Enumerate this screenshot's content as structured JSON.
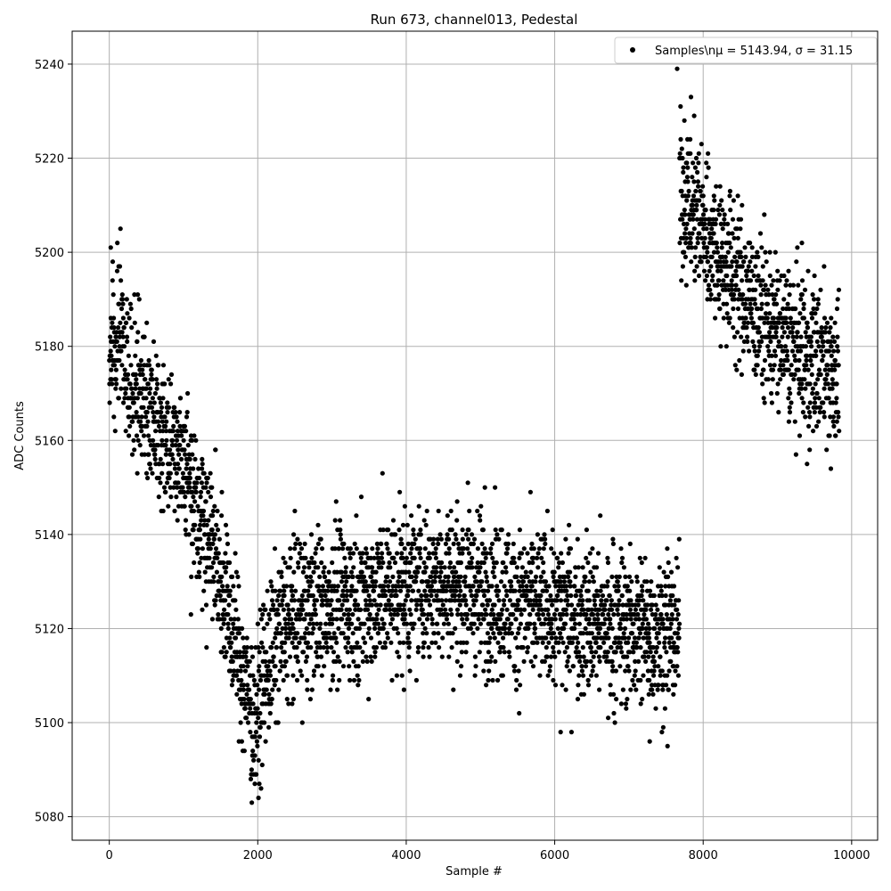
{
  "chart_data": {
    "type": "scatter",
    "title": "Run 673, channel013, Pedestal",
    "xlabel": "Sample #",
    "ylabel": "ADC Counts",
    "xlim": [
      -500,
      10350
    ],
    "ylim": [
      5075,
      5247
    ],
    "xticks": [
      0,
      2000,
      4000,
      6000,
      8000,
      10000
    ],
    "yticks": [
      5080,
      5100,
      5120,
      5140,
      5160,
      5180,
      5200,
      5220,
      5240
    ],
    "grid": true,
    "legend_position": "top-right",
    "series": [
      {
        "name": "Samples\\n$\\mu$ = 5143.94, $\\sigma$ = 31.15",
        "legend_label": "Samples\\nμ = 5143.94, σ = 31.15",
        "color": "#000000",
        "marker": "circle",
        "n_points": 3800,
        "x_range": [
          0,
          9830
        ],
        "trend_x": [
          0,
          200,
          400,
          600,
          800,
          1000,
          1200,
          1400,
          1600,
          1800,
          1950,
          2100,
          2300,
          2600,
          3000,
          3500,
          4000,
          4500,
          5000,
          5500,
          6000,
          6500,
          7000,
          7500,
          7680,
          7681,
          7800,
          8000,
          8200,
          8500,
          8800,
          9100,
          9400,
          9830
        ],
        "trend_y": [
          5181,
          5178,
          5170,
          5164,
          5161,
          5156,
          5146,
          5138,
          5124,
          5110,
          5100,
          5111,
          5119,
          5124,
          5125,
          5127,
          5129,
          5130,
          5128,
          5125,
          5124,
          5122,
          5120,
          5119,
          5119,
          5214,
          5211,
          5206,
          5200,
          5193,
          5186,
          5181,
          5178,
          5175
        ],
        "spread": 8,
        "outliers": [
          [
            20,
            5201
          ],
          [
            150,
            5205
          ],
          [
            3680,
            5153
          ],
          [
            4830,
            5151
          ],
          [
            5060,
            5150
          ],
          [
            6080,
            5098
          ],
          [
            6720,
            5101
          ],
          [
            7280,
            5096
          ],
          [
            7520,
            5095
          ],
          [
            7650,
            5239
          ],
          [
            8410,
            5211
          ],
          [
            9330,
            5202
          ],
          [
            9400,
            5155
          ],
          [
            9720,
            5154
          ],
          [
            2010,
            5084
          ],
          [
            1960,
            5087
          ],
          [
            2600,
            5100
          ],
          [
            1100,
            5123
          ],
          [
            1310,
            5116
          ],
          [
            3970,
            5107
          ]
        ]
      }
    ]
  }
}
